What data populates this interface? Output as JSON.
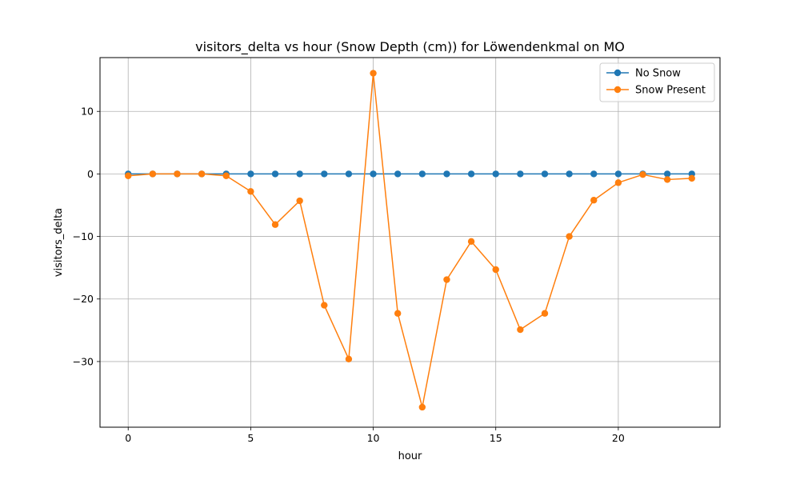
{
  "chart_data": {
    "type": "line",
    "title": "visitors_delta vs hour (Snow Depth (cm)) for Löwendenkmal on MO",
    "xlabel": "hour",
    "ylabel": "visitors_delta",
    "xlim": [
      -1.15,
      24.15
    ],
    "ylim": [
      -40.5,
      18.6
    ],
    "xticks": [
      0,
      5,
      10,
      15,
      20
    ],
    "yticks": [
      -30,
      -20,
      -10,
      0,
      10
    ],
    "grid": true,
    "legend_position": "top-right",
    "x": [
      0,
      1,
      2,
      3,
      4,
      5,
      6,
      7,
      8,
      9,
      10,
      11,
      12,
      13,
      14,
      15,
      16,
      17,
      18,
      19,
      20,
      21,
      22,
      23
    ],
    "series": [
      {
        "name": "No Snow",
        "color": "#1f77b4",
        "values": [
          0,
          0,
          0,
          0,
          0,
          0,
          0,
          0,
          0,
          0,
          0,
          0,
          0,
          0,
          0,
          0,
          0,
          0,
          0,
          0,
          0,
          0,
          0,
          0
        ]
      },
      {
        "name": "Snow Present",
        "color": "#ff7f0e",
        "values": [
          -0.3,
          0,
          0,
          0,
          -0.3,
          -2.8,
          -8.1,
          -4.3,
          -21,
          -29.6,
          16.1,
          -22.3,
          -37.3,
          -16.9,
          -10.8,
          -15.3,
          -24.9,
          -22.3,
          -10,
          -4.2,
          -1.4,
          -0.1,
          -0.9,
          -0.7
        ]
      }
    ]
  }
}
